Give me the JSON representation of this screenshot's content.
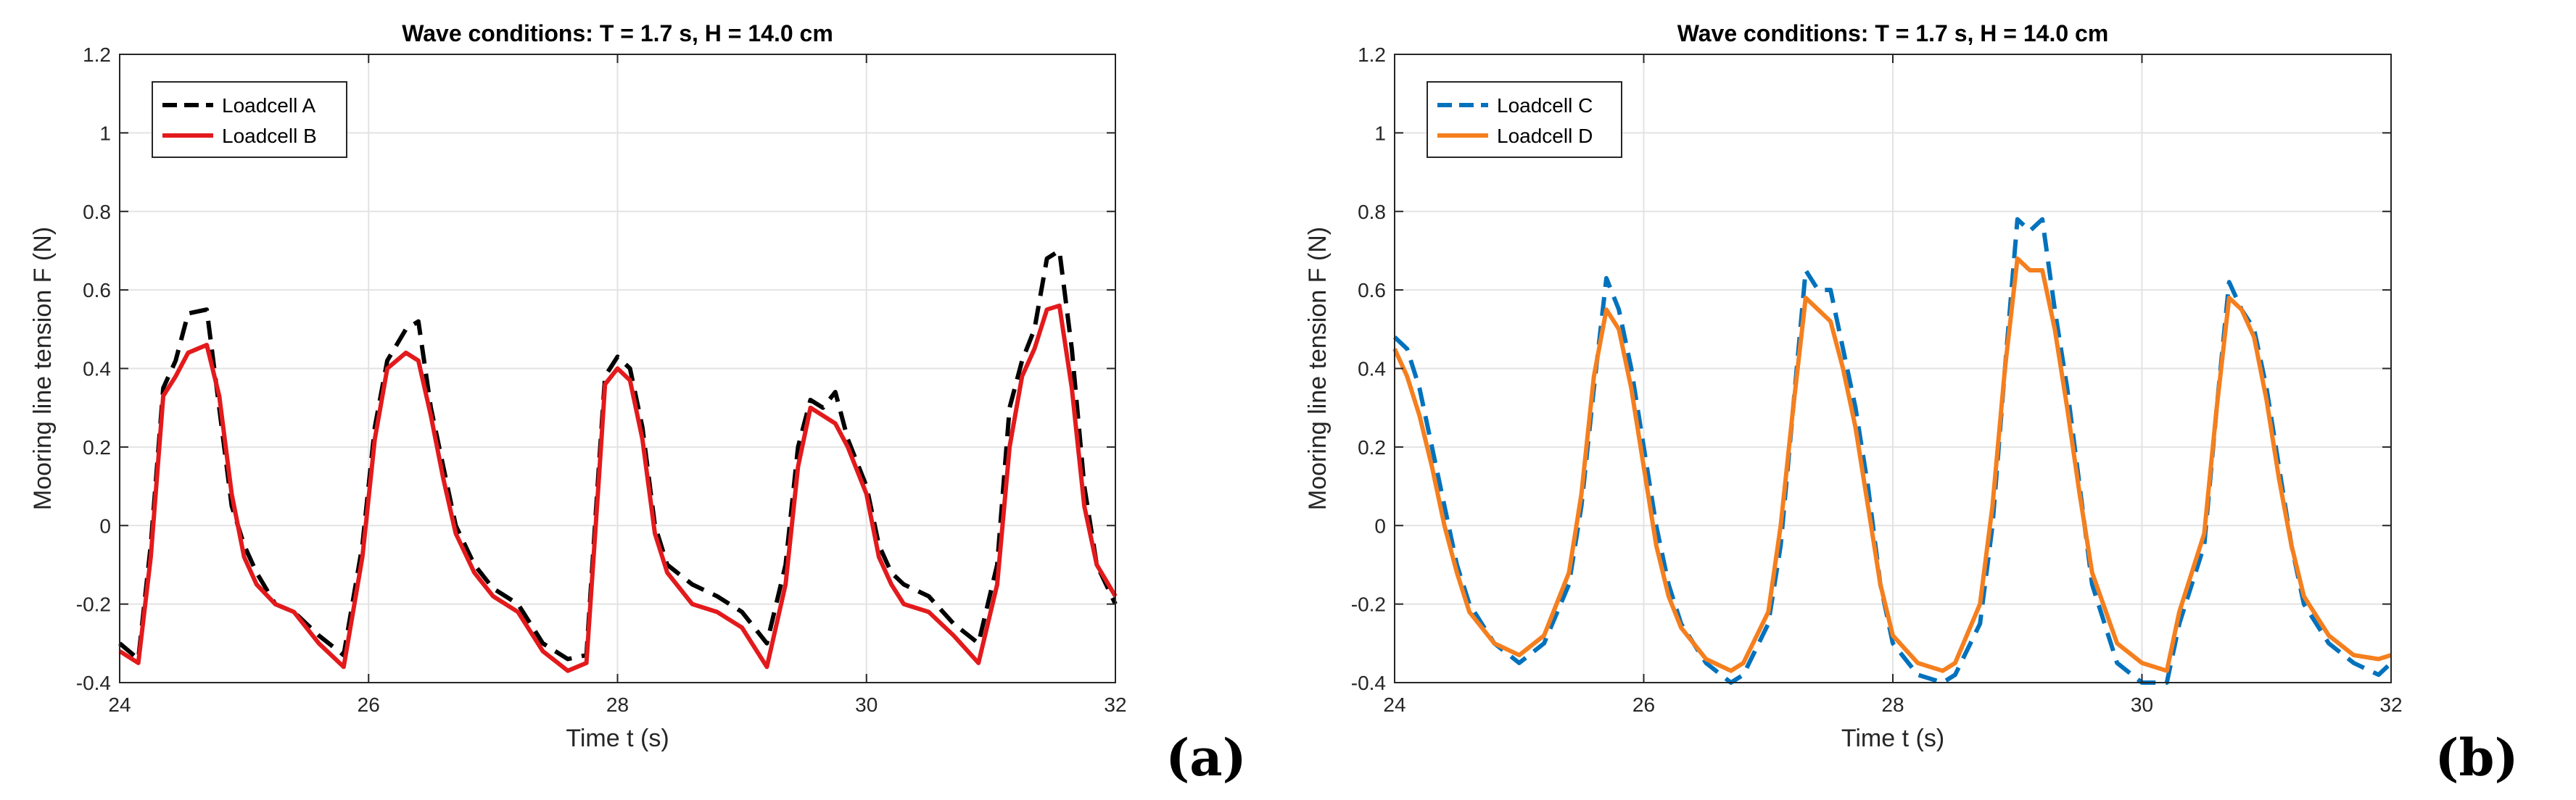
{
  "chart_data": [
    {
      "type": "line",
      "title": "Wave conditions: T = 1.7 s, H = 14.0 cm",
      "xlabel": "Time  t (s)",
      "ylabel": "Mooring line tension  F (N)",
      "xlim": [
        24,
        32
      ],
      "ylim": [
        -0.4,
        1.2
      ],
      "xticks": [
        24,
        26,
        28,
        30,
        32
      ],
      "xtick_labels": [
        "24",
        "26",
        "28",
        "30",
        "32"
      ],
      "yticks": [
        -0.4,
        -0.2,
        0,
        0.2,
        0.4,
        0.6,
        0.8,
        1,
        1.2
      ],
      "ytick_labels": [
        "-0.4",
        "-0.2",
        "0",
        "0.2",
        "0.4",
        "0.6",
        "0.8",
        "1",
        "1.2"
      ],
      "grid": true,
      "legend_position": "top-left",
      "panel_label": "(a)",
      "series": [
        {
          "name": "Loadcell A",
          "color": "#000000",
          "style": "dashed",
          "x": [
            24.0,
            24.15,
            24.25,
            24.35,
            24.45,
            24.55,
            24.7,
            24.8,
            24.9,
            25.0,
            25.1,
            25.25,
            25.4,
            25.6,
            25.8,
            25.95,
            26.05,
            26.15,
            26.3,
            26.4,
            26.5,
            26.6,
            26.7,
            26.85,
            27.0,
            27.2,
            27.4,
            27.6,
            27.75,
            27.85,
            27.9,
            28.0,
            28.1,
            28.2,
            28.3,
            28.4,
            28.6,
            28.8,
            29.0,
            29.2,
            29.35,
            29.45,
            29.55,
            29.65,
            29.75,
            29.85,
            30.0,
            30.1,
            30.2,
            30.3,
            30.5,
            30.7,
            30.9,
            31.05,
            31.15,
            31.25,
            31.35,
            31.45,
            31.55,
            31.65,
            31.75,
            31.85,
            32.0
          ],
          "y": [
            -0.3,
            -0.34,
            -0.05,
            0.35,
            0.42,
            0.54,
            0.55,
            0.3,
            0.05,
            -0.05,
            -0.12,
            -0.2,
            -0.22,
            -0.28,
            -0.33,
            -0.05,
            0.25,
            0.42,
            0.5,
            0.52,
            0.3,
            0.15,
            0.0,
            -0.1,
            -0.16,
            -0.2,
            -0.3,
            -0.34,
            -0.33,
            0.15,
            0.38,
            0.43,
            0.4,
            0.25,
            0.0,
            -0.1,
            -0.15,
            -0.18,
            -0.22,
            -0.3,
            -0.1,
            0.2,
            0.32,
            0.3,
            0.34,
            0.22,
            0.1,
            -0.05,
            -0.12,
            -0.15,
            -0.18,
            -0.25,
            -0.3,
            -0.1,
            0.3,
            0.42,
            0.5,
            0.68,
            0.7,
            0.45,
            0.1,
            -0.1,
            -0.2
          ]
        },
        {
          "name": "Loadcell B",
          "color": "#e31a1c",
          "style": "solid",
          "x": [
            24.0,
            24.15,
            24.25,
            24.35,
            24.45,
            24.55,
            24.7,
            24.8,
            24.9,
            25.0,
            25.1,
            25.25,
            25.4,
            25.6,
            25.8,
            25.95,
            26.05,
            26.15,
            26.3,
            26.4,
            26.5,
            26.6,
            26.7,
            26.85,
            27.0,
            27.2,
            27.4,
            27.6,
            27.75,
            27.85,
            27.9,
            28.0,
            28.1,
            28.2,
            28.3,
            28.4,
            28.6,
            28.8,
            29.0,
            29.2,
            29.35,
            29.45,
            29.55,
            29.65,
            29.75,
            29.85,
            30.0,
            30.1,
            30.2,
            30.3,
            30.5,
            30.7,
            30.9,
            31.05,
            31.15,
            31.25,
            31.35,
            31.45,
            31.55,
            31.65,
            31.75,
            31.85,
            32.0
          ],
          "y": [
            -0.32,
            -0.35,
            -0.08,
            0.33,
            0.38,
            0.44,
            0.46,
            0.33,
            0.08,
            -0.08,
            -0.15,
            -0.2,
            -0.22,
            -0.3,
            -0.36,
            -0.08,
            0.22,
            0.4,
            0.44,
            0.42,
            0.28,
            0.12,
            -0.02,
            -0.12,
            -0.18,
            -0.22,
            -0.32,
            -0.37,
            -0.35,
            0.12,
            0.36,
            0.4,
            0.37,
            0.22,
            -0.02,
            -0.12,
            -0.2,
            -0.22,
            -0.26,
            -0.36,
            -0.15,
            0.15,
            0.3,
            0.28,
            0.26,
            0.2,
            0.08,
            -0.08,
            -0.15,
            -0.2,
            -0.22,
            -0.28,
            -0.35,
            -0.15,
            0.2,
            0.38,
            0.45,
            0.55,
            0.56,
            0.35,
            0.05,
            -0.1,
            -0.18
          ]
        }
      ]
    },
    {
      "type": "line",
      "title": "Wave conditions: T = 1.7 s, H = 14.0 cm",
      "xlabel": "Time  t (s)",
      "ylabel": "Mooring line tension  F (N)",
      "xlim": [
        24,
        32
      ],
      "ylim": [
        -0.4,
        1.2
      ],
      "xticks": [
        24,
        26,
        28,
        30,
        32
      ],
      "xtick_labels": [
        "24",
        "26",
        "28",
        "30",
        "32"
      ],
      "yticks": [
        -0.4,
        -0.2,
        0,
        0.2,
        0.4,
        0.6,
        0.8,
        1,
        1.2
      ],
      "ytick_labels": [
        "-0.4",
        "-0.2",
        "0",
        "0.2",
        "0.4",
        "0.6",
        "0.8",
        "1",
        "1.2"
      ],
      "grid": true,
      "legend_position": "top-left",
      "panel_label": "(b)",
      "series": [
        {
          "name": "Loadcell C",
          "color": "#0072bd",
          "style": "dashed",
          "x": [
            24.0,
            24.1,
            24.2,
            24.3,
            24.4,
            24.5,
            24.6,
            24.8,
            25.0,
            25.2,
            25.4,
            25.5,
            25.6,
            25.7,
            25.8,
            25.9,
            26.0,
            26.1,
            26.2,
            26.3,
            26.5,
            26.7,
            26.8,
            27.0,
            27.1,
            27.2,
            27.3,
            27.4,
            27.5,
            27.6,
            27.7,
            27.8,
            27.9,
            28.0,
            28.2,
            28.4,
            28.5,
            28.7,
            28.8,
            28.9,
            29.0,
            29.1,
            29.2,
            29.3,
            29.4,
            29.5,
            29.6,
            29.8,
            30.0,
            30.2,
            30.3,
            30.5,
            30.6,
            30.7,
            30.8,
            30.9,
            31.0,
            31.1,
            31.2,
            31.3,
            31.5,
            31.7,
            31.9,
            32.0
          ],
          "y": [
            0.48,
            0.45,
            0.35,
            0.2,
            0.05,
            -0.1,
            -0.2,
            -0.3,
            -0.35,
            -0.3,
            -0.15,
            0.05,
            0.35,
            0.63,
            0.55,
            0.4,
            0.2,
            0.0,
            -0.15,
            -0.25,
            -0.35,
            -0.4,
            -0.38,
            -0.25,
            -0.05,
            0.3,
            0.65,
            0.6,
            0.6,
            0.45,
            0.3,
            0.1,
            -0.15,
            -0.3,
            -0.38,
            -0.4,
            -0.38,
            -0.25,
            0.0,
            0.4,
            0.78,
            0.75,
            0.78,
            0.55,
            0.35,
            0.1,
            -0.15,
            -0.35,
            -0.4,
            -0.4,
            -0.25,
            -0.05,
            0.3,
            0.62,
            0.55,
            0.5,
            0.35,
            0.15,
            -0.05,
            -0.2,
            -0.3,
            -0.35,
            -0.38,
            -0.35
          ]
        },
        {
          "name": "Loadcell D",
          "color": "#f57f1e",
          "style": "solid",
          "x": [
            24.0,
            24.1,
            24.2,
            24.3,
            24.4,
            24.5,
            24.6,
            24.8,
            25.0,
            25.2,
            25.4,
            25.5,
            25.6,
            25.7,
            25.8,
            25.9,
            26.0,
            26.1,
            26.2,
            26.3,
            26.5,
            26.7,
            26.8,
            27.0,
            27.1,
            27.2,
            27.3,
            27.4,
            27.5,
            27.6,
            27.7,
            27.8,
            27.9,
            28.0,
            28.2,
            28.4,
            28.5,
            28.7,
            28.8,
            28.9,
            29.0,
            29.1,
            29.2,
            29.3,
            29.4,
            29.5,
            29.6,
            29.8,
            30.0,
            30.2,
            30.3,
            30.5,
            30.6,
            30.7,
            30.8,
            30.9,
            31.0,
            31.1,
            31.2,
            31.3,
            31.5,
            31.7,
            31.9,
            32.0
          ],
          "y": [
            0.45,
            0.38,
            0.28,
            0.15,
            0.0,
            -0.12,
            -0.22,
            -0.3,
            -0.33,
            -0.28,
            -0.12,
            0.08,
            0.38,
            0.55,
            0.5,
            0.35,
            0.15,
            -0.05,
            -0.18,
            -0.26,
            -0.34,
            -0.37,
            -0.35,
            -0.22,
            0.0,
            0.3,
            0.58,
            0.55,
            0.52,
            0.4,
            0.25,
            0.05,
            -0.15,
            -0.28,
            -0.35,
            -0.37,
            -0.35,
            -0.2,
            0.05,
            0.4,
            0.68,
            0.65,
            0.65,
            0.5,
            0.3,
            0.08,
            -0.12,
            -0.3,
            -0.35,
            -0.37,
            -0.22,
            -0.02,
            0.3,
            0.58,
            0.55,
            0.48,
            0.32,
            0.12,
            -0.05,
            -0.18,
            -0.28,
            -0.33,
            -0.34,
            -0.33
          ]
        }
      ]
    }
  ]
}
